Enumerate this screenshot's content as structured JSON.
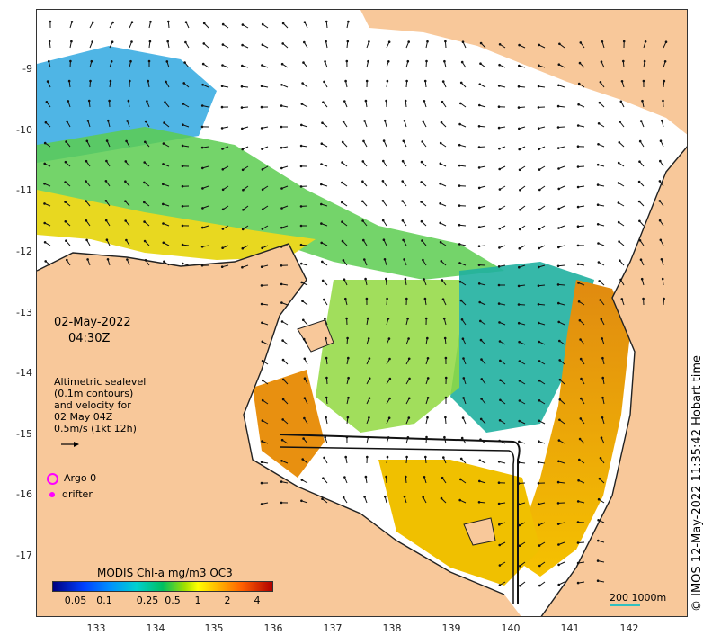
{
  "map": {
    "x_ticks": [
      "133",
      "134",
      "135",
      "136",
      "137",
      "138",
      "139",
      "140",
      "141",
      "142"
    ],
    "y_ticks": [
      "-9",
      "-10",
      "-11",
      "-12",
      "-13",
      "-14",
      "-15",
      "-16",
      "-17"
    ],
    "date": "02-May-2022",
    "time": "04:30Z",
    "altimetry_note": [
      "Altimetric sealevel",
      "(0.1m contours)",
      "and velocity for",
      "02 May 04Z",
      "0.5m/s (1kt 12h)"
    ],
    "legend": {
      "argo": "Argo 0",
      "drifter": "drifter"
    },
    "colorbar": {
      "title": "MODIS Chl-a mg/m3 OC3",
      "ticks": [
        "0.05",
        "0.1",
        "0.25",
        "0.5",
        "1",
        "2",
        "4"
      ]
    },
    "scale_label": "200  1000m",
    "credit": "© IMOS 12-May-2022 11:35:42 Hobart time",
    "colors": {
      "land": "#f8c89a",
      "argo_marker": "#ff00ff",
      "drifter_marker": "#ff00ff"
    }
  }
}
